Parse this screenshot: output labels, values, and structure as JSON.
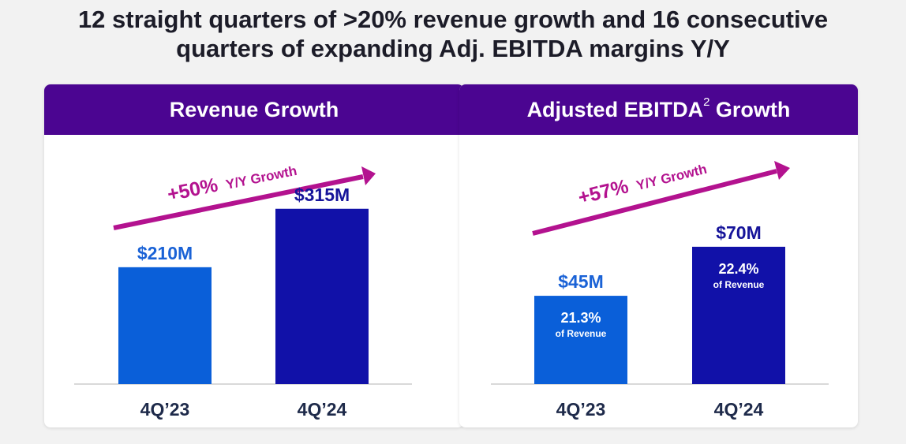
{
  "headline": {
    "line1": "12 straight quarters of >20% revenue growth and 16 consecutive",
    "line2": "quarters of expanding Adj. EBITDA margins Y/Y"
  },
  "colors": {
    "header_bg": "#4b0591",
    "bar_light": "#0a5fd9",
    "bar_dark": "#1111a8",
    "arrow": "#b3128f",
    "value_light": "#1a62d6",
    "value_dark": "#16149a"
  },
  "chart_data": [
    {
      "type": "bar",
      "title": "Revenue Growth",
      "categories": [
        "4Q’23",
        "4Q’24"
      ],
      "values": [
        210,
        315
      ],
      "value_labels": [
        "$210M",
        "$315M"
      ],
      "growth_label": "+50%",
      "growth_suffix": "Y/Y Growth",
      "ylim": [
        0,
        360
      ],
      "unit": "$M"
    },
    {
      "type": "bar",
      "title": "Adjusted EBITDA",
      "title_superscript": "2",
      "title_suffix": " Growth",
      "categories": [
        "4Q’23",
        "4Q’24"
      ],
      "values": [
        45,
        70
      ],
      "value_labels": [
        "$45M",
        "$70M"
      ],
      "margin_labels": [
        "21.3%",
        "22.4%"
      ],
      "margin_caption": "of Revenue",
      "growth_label": "+57%",
      "growth_suffix": "Y/Y Growth",
      "ylim": [
        0,
        78
      ],
      "unit": "$M"
    }
  ]
}
